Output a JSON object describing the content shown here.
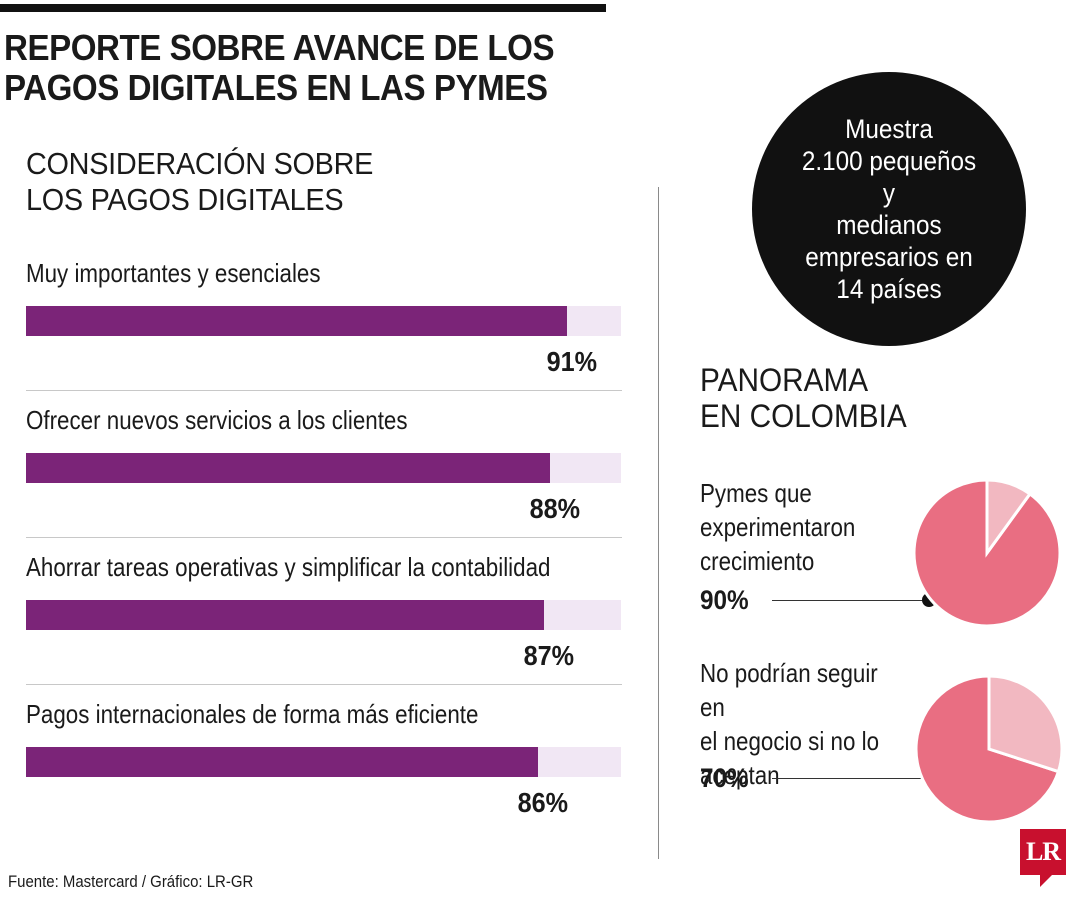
{
  "header": {
    "title_line1": "REPORTE SOBRE AVANCE DE LOS",
    "title_line2": "PAGOS DIGITALES EN LAS PYMES"
  },
  "section": {
    "title_line1": "CONSIDERACIÓN SOBRE",
    "title_line2": "LOS PAGOS DIGITALES"
  },
  "sample": {
    "line1": "Muestra",
    "line2": "2.100 pequeños y",
    "line3": "medianos",
    "line4": "empresarios en",
    "line5": "14 países"
  },
  "panorama": {
    "title_line1": "PANORAMA",
    "title_line2": "EN COLOMBIA"
  },
  "source": "Fuente: Mastercard / Gráfico: LR-GR",
  "logo": "LR",
  "colors": {
    "bar_fill": "#7b2478",
    "bar_track": "#f1e7f4",
    "pie_main": "#e96e82",
    "pie_rest": "#f2b8c1"
  },
  "chart_data": [
    {
      "type": "bar",
      "orientation": "horizontal",
      "categories": [
        "Muy importantes y esenciales",
        "Ofrecer nuevos servicios a los clientes",
        "Ahorrar tareas operativas y simplificar la contabilidad",
        "Pagos internacionales de forma más eficiente"
      ],
      "values": [
        91,
        88,
        87,
        86
      ],
      "value_labels": [
        "91%",
        "88%",
        "87%",
        "86%"
      ],
      "xlim": [
        0,
        100
      ]
    },
    {
      "type": "pie",
      "label_lines": [
        "Pymes que",
        "experimentaron",
        "crecimiento"
      ],
      "value": 90,
      "value_label": "90%"
    },
    {
      "type": "pie",
      "label_lines": [
        "No podrían seguir en",
        "el negocio si no lo",
        "aceptan"
      ],
      "value": 70,
      "value_label": "70%"
    }
  ]
}
